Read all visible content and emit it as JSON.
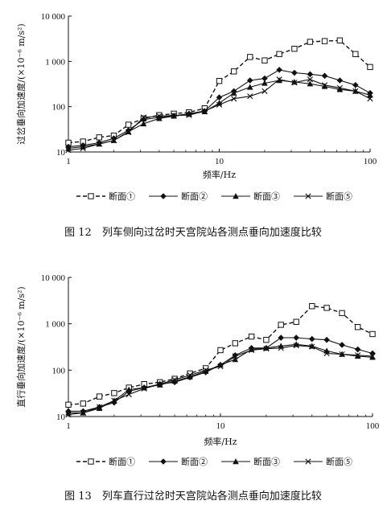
{
  "chart_data": [
    {
      "type": "line",
      "x_scale": "log",
      "y_scale": "log",
      "xlim": [
        1,
        100
      ],
      "ylim": [
        10,
        10000
      ],
      "x_ticks": [
        "1",
        "10",
        "100"
      ],
      "y_ticks": [
        "10",
        "100",
        "1 000",
        "10 000"
      ],
      "xlabel": "频率/Hz",
      "ylabel": "过岔垂向加速度/(×10⁻⁶ m/s²)",
      "caption": "图 12　列车侧向过岔时天宫院站各测点垂向加速度比较",
      "legend_placement": "bottom",
      "x": [
        1,
        1.25,
        1.6,
        2,
        2.5,
        3.15,
        4,
        5,
        6.3,
        8,
        10,
        12.5,
        16,
        20,
        25,
        31.5,
        40,
        50,
        63,
        80,
        100
      ],
      "series": [
        {
          "name": "断面①",
          "marker": "square",
          "dash": true,
          "values": [
            16,
            17,
            21,
            23,
            40,
            55,
            65,
            70,
            75,
            92,
            370,
            600,
            1250,
            1050,
            1450,
            1900,
            2700,
            2800,
            2900,
            1450,
            750
          ]
        },
        {
          "name": "断面②",
          "marker": "diamond",
          "dash": false,
          "values": [
            13,
            14,
            16,
            20,
            30,
            52,
            58,
            63,
            70,
            80,
            160,
            220,
            380,
            420,
            650,
            560,
            520,
            480,
            380,
            300,
            200
          ]
        },
        {
          "name": "断面③",
          "marker": "triangle",
          "dash": false,
          "values": [
            12,
            13,
            15,
            18,
            28,
            42,
            55,
            62,
            68,
            78,
            120,
            200,
            270,
            330,
            380,
            350,
            320,
            280,
            240,
            220,
            180
          ]
        },
        {
          "name": "断面⑤",
          "marker": "x",
          "dash": false,
          "values": [
            11,
            12,
            15,
            18,
            27,
            58,
            62,
            64,
            65,
            80,
            110,
            150,
            170,
            220,
            400,
            340,
            400,
            300,
            260,
            220,
            150
          ]
        }
      ]
    },
    {
      "type": "line",
      "x_scale": "log",
      "y_scale": "log",
      "xlim": [
        1,
        100
      ],
      "ylim": [
        10,
        10000
      ],
      "x_ticks": [
        "1",
        "10",
        "100"
      ],
      "y_ticks": [
        "10",
        "100",
        "1 000",
        "10 000"
      ],
      "xlabel": "频率/Hz",
      "ylabel": "直行垂向加速度/(×10⁻⁶ m/s²)",
      "caption": "图 13　列车直行过岔时天宫院站各测点垂向加速度比较",
      "legend_placement": "bottom",
      "x": [
        1,
        1.25,
        1.6,
        2,
        2.5,
        3.15,
        4,
        5,
        6.3,
        8,
        10,
        12.5,
        16,
        20,
        25,
        31.5,
        40,
        50,
        63,
        80,
        100
      ],
      "series": [
        {
          "name": "断面①",
          "marker": "square",
          "dash": true,
          "values": [
            18,
            19,
            27,
            32,
            42,
            50,
            55,
            65,
            85,
            110,
            270,
            380,
            530,
            450,
            950,
            1100,
            2400,
            2200,
            1700,
            850,
            600
          ]
        },
        {
          "name": "断面②",
          "marker": "diamond",
          "dash": false,
          "values": [
            13,
            13,
            16,
            20,
            35,
            42,
            50,
            55,
            70,
            90,
            130,
            210,
            300,
            300,
            500,
            500,
            470,
            450,
            350,
            280,
            230
          ]
        },
        {
          "name": "断面③",
          "marker": "triangle",
          "dash": false,
          "values": [
            12,
            12,
            15,
            22,
            38,
            42,
            48,
            58,
            72,
            95,
            130,
            170,
            280,
            300,
            330,
            360,
            330,
            260,
            220,
            200,
            190
          ]
        },
        {
          "name": "断面⑤",
          "marker": "x",
          "dash": false,
          "values": [
            11,
            12,
            16,
            22,
            30,
            40,
            50,
            62,
            78,
            100,
            120,
            200,
            270,
            290,
            300,
            340,
            320,
            230,
            220,
            210,
            200
          ]
        }
      ]
    }
  ]
}
